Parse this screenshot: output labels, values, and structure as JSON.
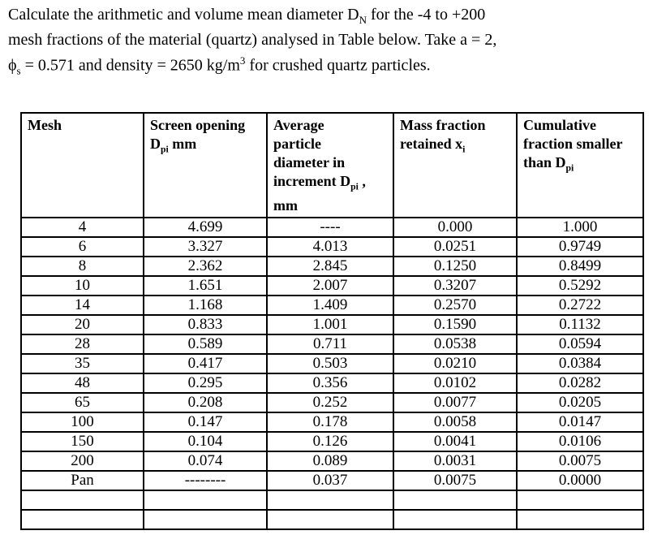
{
  "problem": {
    "line1a": "Calculate the arithmetic and volume mean diameter D",
    "line1sub": "N",
    "line1b": " for the -4 to +200",
    "line2": "mesh fractions of the material (quartz) analysed in Table below. Take a = 2,",
    "line3a": "ϕ",
    "line3sub": "s",
    "line3b": " = 0.571 and density = 2650 kg/m",
    "line3sup": "3",
    "line3c": " for crushed quartz particles."
  },
  "table": {
    "headers": {
      "col1": "Mesh",
      "col2": {
        "line1": "Screen opening",
        "sym": "D",
        "sub": "pi",
        "after": " mm"
      },
      "col3": {
        "line1": "Average",
        "line2": "particle",
        "line3": "diameter in",
        "line4pre": "increment ",
        "sym": "D",
        "sub": "pi",
        "line4post": " ,",
        "line5": "mm"
      },
      "col4": {
        "line1": "Mass fraction",
        "line2pre": "retained ",
        "sym": "x",
        "sub": "i"
      },
      "col5": {
        "line1": "Cumulative",
        "line2": "fraction smaller",
        "line3pre": "than ",
        "sym": "D",
        "sub": "pi"
      }
    },
    "rows": [
      [
        "4",
        "4.699",
        "----",
        "0.000",
        "1.000"
      ],
      [
        "6",
        "3.327",
        "4.013",
        "0.0251",
        "0.9749"
      ],
      [
        "8",
        "2.362",
        "2.845",
        "0.1250",
        "0.8499"
      ],
      [
        "10",
        "1.651",
        "2.007",
        "0.3207",
        "0.5292"
      ],
      [
        "14",
        "1.168",
        "1.409",
        "0.2570",
        "0.2722"
      ],
      [
        "20",
        "0.833",
        "1.001",
        "0.1590",
        "0.1132"
      ],
      [
        "28",
        "0.589",
        "0.711",
        "0.0538",
        "0.0594"
      ],
      [
        "35",
        "0.417",
        "0.503",
        "0.0210",
        "0.0384"
      ],
      [
        "48",
        "0.295",
        "0.356",
        "0.0102",
        "0.0282"
      ],
      [
        "65",
        "0.208",
        "0.252",
        "0.0077",
        "0.0205"
      ],
      [
        "100",
        "0.147",
        "0.178",
        "0.0058",
        "0.0147"
      ],
      [
        "150",
        "0.104",
        "0.126",
        "0.0041",
        "0.0106"
      ],
      [
        "200",
        "0.074",
        "0.089",
        "0.0031",
        "0.0075"
      ],
      [
        "Pan",
        "--------",
        "0.037",
        "0.0075",
        "0.0000"
      ],
      [
        "",
        "",
        "",
        "",
        ""
      ],
      [
        "",
        "",
        "",
        "",
        ""
      ]
    ]
  }
}
